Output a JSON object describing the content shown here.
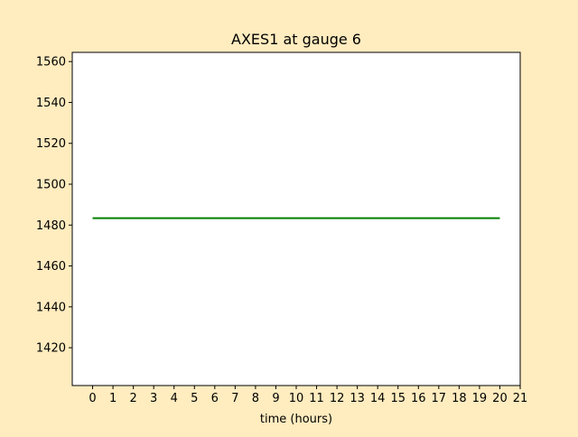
{
  "chart_data": {
    "type": "line",
    "title": "AXES1 at gauge 6",
    "xlabel": "time (hours)",
    "ylabel": "",
    "xlim": [
      -1,
      21
    ],
    "ylim": [
      1401.5,
      1564.5
    ],
    "xticks": [
      0,
      1,
      2,
      3,
      4,
      5,
      6,
      7,
      8,
      9,
      10,
      11,
      12,
      13,
      14,
      15,
      16,
      17,
      18,
      19,
      20,
      21
    ],
    "yticks": [
      1420,
      1440,
      1460,
      1480,
      1500,
      1520,
      1540,
      1560
    ],
    "grid": false,
    "series": [
      {
        "color": "#008000",
        "x": [
          0,
          20
        ],
        "y": [
          1483.4,
          1483.4
        ]
      }
    ]
  },
  "colors": {
    "figure_background": "#ffecbf",
    "axes_background": "#ffffff"
  }
}
